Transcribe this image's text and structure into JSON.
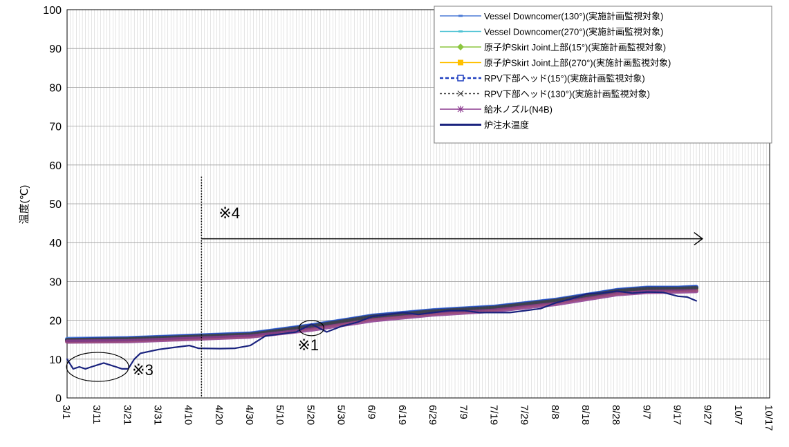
{
  "chart_data": {
    "type": "line",
    "ylabel": "温度(℃)",
    "ylim": [
      0,
      100
    ],
    "yticks": [
      0,
      10,
      20,
      30,
      40,
      50,
      60,
      70,
      80,
      90,
      100
    ],
    "x_start": "3/1",
    "x_end": "10/17",
    "xtick_labels": [
      "3/1",
      "3/11",
      "3/21",
      "3/31",
      "4/10",
      "4/20",
      "4/30",
      "5/10",
      "5/20",
      "5/30",
      "6/9",
      "6/19",
      "6/29",
      "7/9",
      "7/19",
      "7/29",
      "8/8",
      "8/18",
      "8/28",
      "9/7",
      "9/17",
      "9/27",
      "10/7",
      "10/17"
    ],
    "grid": true,
    "legend_position": "top-right",
    "series": [
      {
        "name": "Vessel Downcomer(130°)(実施計画監視対象)",
        "color": "#4a7ad6",
        "marker": "dash",
        "x": [
          "3/1",
          "3/21",
          "4/10",
          "4/30",
          "5/20",
          "6/9",
          "6/29",
          "7/19",
          "8/8",
          "8/28",
          "9/7",
          "9/17",
          "9/23"
        ],
        "values": [
          15.2,
          15.4,
          16,
          16.6,
          18.7,
          21.2,
          22.6,
          23.5,
          25.3,
          27.8,
          28.4,
          28.4,
          28.6
        ]
      },
      {
        "name": "Vessel Downcomer(270°)(実施計画監視対象)",
        "color": "#4fc3d4",
        "marker": "dash",
        "x": [
          "3/1",
          "3/21",
          "4/10",
          "4/30",
          "5/20",
          "6/9",
          "6/29",
          "7/19",
          "8/8",
          "8/28",
          "9/7",
          "9/17",
          "9/23"
        ],
        "values": [
          15,
          15.2,
          15.8,
          16.4,
          18.5,
          21,
          22.4,
          23.3,
          25.1,
          27.6,
          28.2,
          28.2,
          28.4
        ]
      },
      {
        "name": "原子炉Skirt Joint上部(15°)(実施計画監視対象)",
        "color": "#8cc63f",
        "marker": "diamond",
        "x": [
          "3/1",
          "3/21",
          "4/10",
          "4/30",
          "5/20",
          "6/9",
          "6/29",
          "7/19",
          "8/8",
          "8/28",
          "9/7",
          "9/17",
          "9/23"
        ],
        "values": [
          14.8,
          15,
          15.6,
          16.2,
          18.2,
          20.6,
          22,
          23,
          24.8,
          27.2,
          27.8,
          27.9,
          28
        ]
      },
      {
        "name": "原子炉Skirt Joint上部(270°)(実施計画監視対象)",
        "color": "#ffc000",
        "marker": "square",
        "x": [
          "3/1",
          "3/21",
          "4/10",
          "4/30",
          "5/20",
          "6/9",
          "6/29",
          "7/19",
          "8/8",
          "8/28",
          "9/7",
          "9/17",
          "9/23"
        ],
        "values": [
          14.6,
          14.8,
          15.4,
          16,
          18,
          20.4,
          21.8,
          22.8,
          24.6,
          27,
          27.6,
          27.7,
          27.8
        ]
      },
      {
        "name": "RPV下部ヘッド(15°)(実施計画監視対象)",
        "color": "#1f3fbf",
        "marker": "open-square",
        "x": [
          "3/1",
          "3/21",
          "4/10",
          "4/30",
          "5/20",
          "6/9",
          "6/29",
          "7/19",
          "8/8",
          "8/28",
          "9/7",
          "9/17",
          "9/23"
        ],
        "values": [
          15,
          15.3,
          15.9,
          16.5,
          18.6,
          21.1,
          22.5,
          23.4,
          25.2,
          27.7,
          28.3,
          28.3,
          28.5
        ]
      },
      {
        "name": "RPV下部ヘッド(130°)(実施計画監視対象)",
        "color": "#404040",
        "marker": "x",
        "x": [
          "3/1",
          "3/21",
          "4/10",
          "4/30",
          "5/20",
          "6/9",
          "6/29",
          "7/19",
          "8/8",
          "8/28",
          "9/7",
          "9/17",
          "9/23"
        ],
        "values": [
          14.9,
          15.1,
          15.7,
          16.3,
          18.4,
          20.9,
          22.3,
          23.2,
          25,
          27.5,
          28.1,
          28.1,
          28.3
        ]
      },
      {
        "name": "給水ノズル(N4B)",
        "color": "#8b3a8f",
        "marker": "star",
        "x": [
          "3/1",
          "3/21",
          "4/10",
          "4/30",
          "5/20",
          "6/9",
          "6/29",
          "7/19",
          "8/8",
          "8/28",
          "9/7",
          "9/17",
          "9/23"
        ],
        "values": [
          14.5,
          14.6,
          15.2,
          15.8,
          17.6,
          20,
          21.5,
          22.5,
          24.2,
          26.7,
          27.3,
          27.4,
          27.5
        ]
      },
      {
        "name": "炉注水温度",
        "color": "#1a237e",
        "marker": "none",
        "x": [
          "3/1",
          "3/3",
          "3/5",
          "3/7",
          "3/9",
          "3/11",
          "3/13",
          "3/15",
          "3/17",
          "3/19",
          "3/21",
          "3/23",
          "3/25",
          "3/31",
          "4/5",
          "4/10",
          "4/13",
          "4/20",
          "4/25",
          "4/30",
          "5/5",
          "5/10",
          "5/15",
          "5/20",
          "5/25",
          "5/30",
          "6/4",
          "6/9",
          "6/14",
          "6/19",
          "6/24",
          "6/29",
          "7/4",
          "7/9",
          "7/14",
          "7/19",
          "7/24",
          "7/29",
          "8/3",
          "8/8",
          "8/13",
          "8/18",
          "8/23",
          "8/28",
          "9/2",
          "9/7",
          "9/12",
          "9/17",
          "9/20",
          "9/23"
        ],
        "values": [
          10,
          7.5,
          8,
          7.5,
          8,
          8.5,
          9,
          8.5,
          8,
          7.5,
          7.5,
          10,
          11.5,
          12.5,
          13,
          13.5,
          12.8,
          12.7,
          12.8,
          13.5,
          16,
          16.5,
          17,
          19,
          17,
          18.5,
          19.5,
          21,
          21.5,
          22,
          21.5,
          22,
          22.5,
          22.5,
          22,
          22,
          22,
          22.5,
          23,
          24.5,
          25.5,
          26.8,
          27,
          27.5,
          27,
          27.3,
          27.2,
          26.2,
          26,
          25
        ]
      }
    ],
    "annotations": [
      {
        "text": "※1",
        "x": "5/20",
        "y": 18
      },
      {
        "text": "※3",
        "x": "3/11",
        "y": 8
      },
      {
        "text": "※4",
        "x": "4/14",
        "y": 44.5
      }
    ],
    "marker_line": {
      "x": "4/14",
      "y_top": 57
    },
    "arrow": {
      "x_start": "4/14",
      "x_end": "9/25",
      "y": 41
    }
  }
}
